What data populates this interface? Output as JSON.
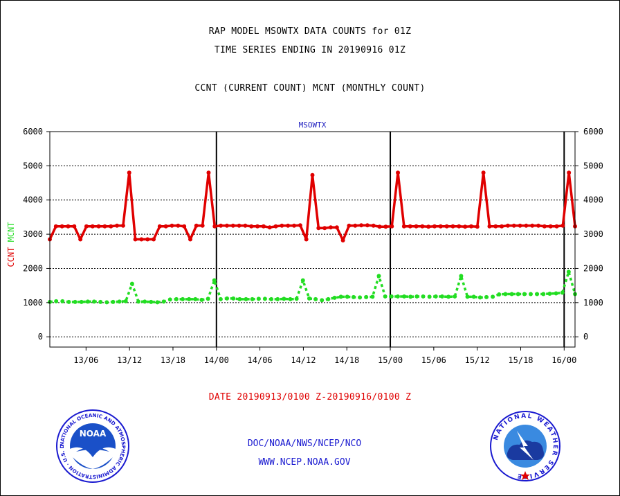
{
  "page": {
    "title_line1": "RAP MODEL MSOWTX DATA COUNTS for 01Z",
    "title_line2": "TIME SERIES ENDING IN 20190916 01Z",
    "subtitle": "CCNT (CURRENT COUNT) MCNT (MONTHLY COUNT)",
    "date_range": "DATE 20190913/0100 Z-20190916/0100 Z",
    "footer_org": "DOC/NOAA/NWS/NCEP/NCO",
    "footer_url": "WWW.NCEP.NOAA.GOV",
    "noaa_logo_text": "NOAA",
    "noaa_ring_text": "NATIONAL OCEANIC AND ATMOSPHERIC ADMINISTRATION · U.S. DEPARTMENT OF COMMERCE ·",
    "nws_ring_text": "NATIONAL WEATHER SERVICE"
  },
  "colors": {
    "ccnt": "#e00000",
    "mcnt": "#22dd22",
    "label_blue": "#2020c0"
  },
  "chart_data": {
    "type": "line",
    "title": "MSOWTX",
    "ylabel_left": [
      "CCNT",
      "MCNT"
    ],
    "ylim": [
      -300,
      6000
    ],
    "yticks": [
      0,
      1000,
      2000,
      3000,
      4000,
      5000,
      6000
    ],
    "ytick_labels": [
      "0",
      "1000",
      "2000",
      "3000",
      "4000",
      "5000",
      "6000"
    ],
    "x_range_hours": [
      0,
      72.5
    ],
    "x_ticks": [
      {
        "hour": 5,
        "label": "13/06"
      },
      {
        "hour": 11,
        "label": "13/12"
      },
      {
        "hour": 17,
        "label": "13/18"
      },
      {
        "hour": 23,
        "label": "14/00"
      },
      {
        "hour": 29,
        "label": "14/06"
      },
      {
        "hour": 35,
        "label": "14/12"
      },
      {
        "hour": 41,
        "label": "14/18"
      },
      {
        "hour": 47,
        "label": "15/00"
      },
      {
        "hour": 53,
        "label": "15/06"
      },
      {
        "hour": 59,
        "label": "15/12"
      },
      {
        "hour": 65,
        "label": "15/18"
      },
      {
        "hour": 71,
        "label": "16/00"
      }
    ],
    "day_boundaries_hours": [
      23,
      47,
      71
    ],
    "grid": "horizontal dotted",
    "series": [
      {
        "name": "CCNT",
        "values": [
          2850,
          3230,
          3230,
          3230,
          3230,
          2850,
          3230,
          3230,
          3230,
          3230,
          3230,
          3250,
          3250,
          4800,
          2850,
          2850,
          2850,
          2850,
          3230,
          3230,
          3250,
          3250,
          3230,
          2850,
          3250,
          3250,
          4800,
          3230,
          3250,
          3250,
          3250,
          3250,
          3250,
          3230,
          3230,
          3230,
          3200,
          3230,
          3250,
          3250,
          3250,
          3260,
          2850,
          4730,
          3180,
          3180,
          3200,
          3200,
          2820,
          3250,
          3250,
          3260,
          3260,
          3250,
          3220,
          3220,
          3230,
          4800,
          3230,
          3230,
          3230,
          3230,
          3220,
          3230,
          3230,
          3230,
          3230,
          3230,
          3220,
          3230,
          3220,
          4800,
          3230,
          3230,
          3230,
          3250,
          3250,
          3250,
          3250,
          3250,
          3250,
          3230,
          3230,
          3230,
          3250,
          4800,
          3230
        ]
      },
      {
        "name": "MCNT",
        "values": [
          1020,
          1040,
          1040,
          1020,
          1020,
          1020,
          1030,
          1030,
          1020,
          1010,
          1020,
          1030,
          1040,
          1550,
          1030,
          1030,
          1020,
          1010,
          1030,
          1090,
          1100,
          1100,
          1100,
          1100,
          1080,
          1110,
          1650,
          1100,
          1120,
          1120,
          1100,
          1100,
          1100,
          1110,
          1110,
          1100,
          1100,
          1110,
          1100,
          1110,
          1650,
          1120,
          1100,
          1070,
          1100,
          1140,
          1170,
          1170,
          1160,
          1150,
          1160,
          1170,
          1780,
          1180,
          1180,
          1180,
          1180,
          1170,
          1180,
          1180,
          1170,
          1180,
          1180,
          1170,
          1180,
          1780,
          1170,
          1170,
          1150,
          1160,
          1170,
          1240,
          1250,
          1250,
          1250,
          1250,
          1250,
          1250,
          1250,
          1260,
          1270,
          1290,
          1900,
          1250
        ]
      }
    ]
  }
}
